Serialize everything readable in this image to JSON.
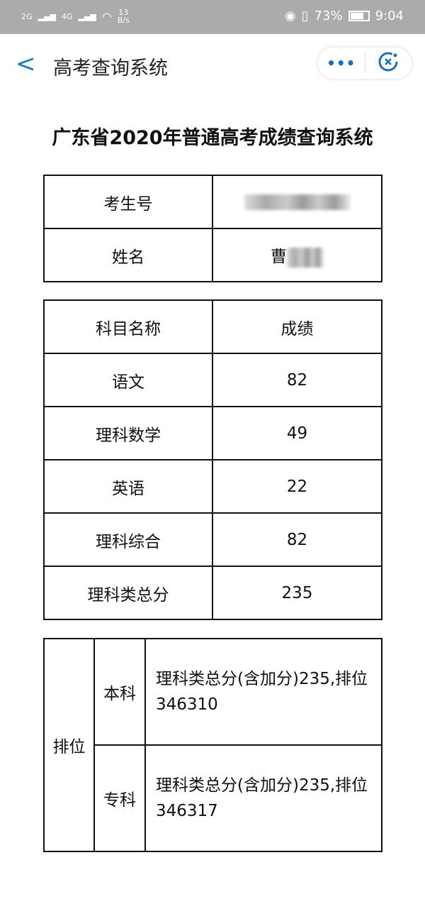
{
  "status_bar": {
    "signal1": "2G",
    "signal2": "4G",
    "net_speed": "13",
    "net_unit": "B/s",
    "battery": "73%",
    "time": "9:04"
  },
  "header": {
    "title": "高考查询系统",
    "more": "•••"
  },
  "page_title": "广东省2020年普通高考成绩查询系统",
  "student": {
    "id_label": "考生号",
    "name_label": "姓名",
    "name_visible": "曹"
  },
  "scores": {
    "headers": [
      "科目名称",
      "成绩"
    ],
    "rows": [
      [
        "语文",
        "82"
      ],
      [
        "理科数学",
        "49"
      ],
      [
        "英语",
        "22"
      ],
      [
        "理科综合",
        "82"
      ],
      [
        "理科类总分",
        "235"
      ]
    ]
  },
  "ranking": {
    "label": "排位",
    "rows": [
      {
        "type": "本科",
        "text": "理科类总分(含加分)235,排位346310"
      },
      {
        "type": "专科",
        "text": "理科类总分(含加分)235,排位346317"
      }
    ]
  },
  "colors": {
    "accent": "#1a7fc1",
    "status_bar": "#ababab"
  }
}
